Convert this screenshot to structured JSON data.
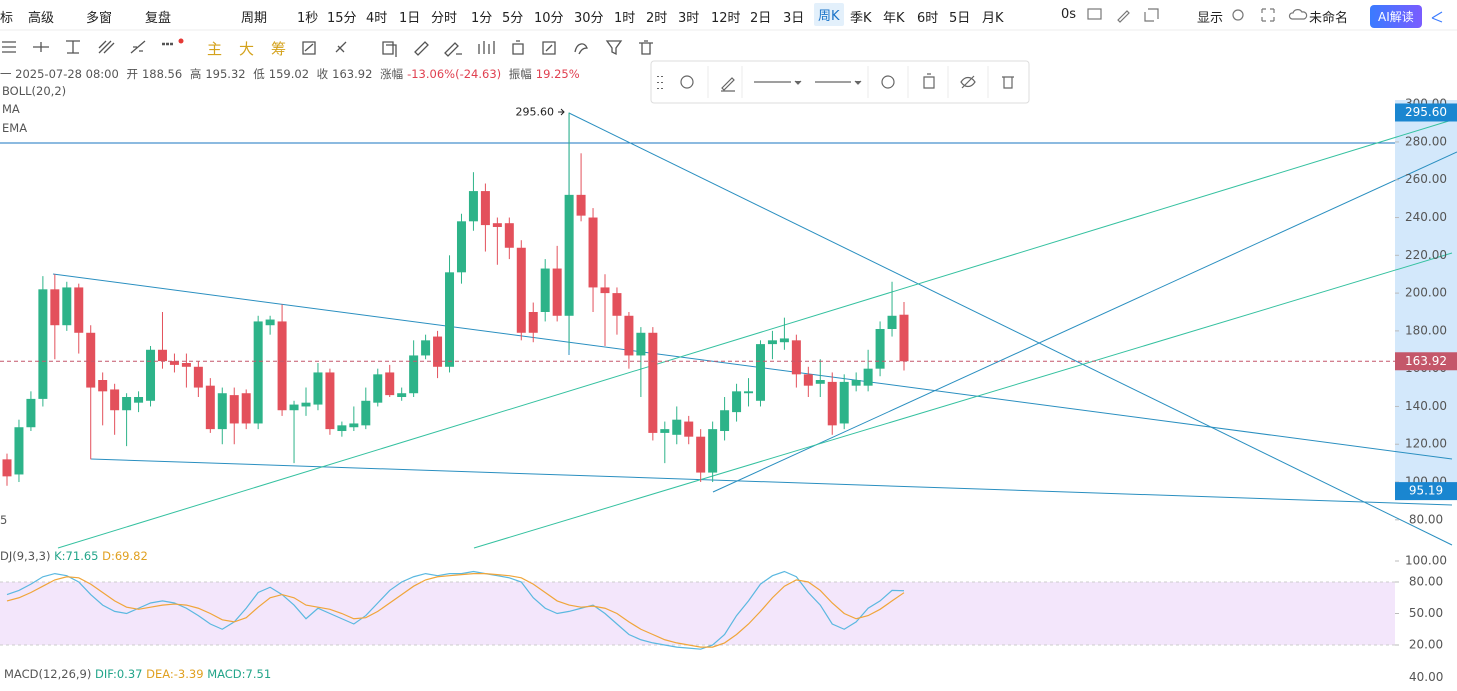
{
  "toolbar": {
    "items": [
      "标",
      "高级",
      "多窗",
      "复盘",
      "周期",
      "1秒",
      "15分",
      "4时",
      "1日",
      "分时",
      "1分",
      "5分",
      "10分",
      "30分",
      "1时",
      "2时",
      "3时",
      "12时",
      "2日",
      "3日",
      "周K",
      "季K",
      "年K",
      "6时",
      "5日",
      "月K"
    ],
    "selected": 20,
    "right_items": [
      "0s",
      "显示",
      "未命名"
    ],
    "ai_button": "AI解读"
  },
  "drawing_toolbar": {
    "items": [
      "主",
      "大",
      "筹"
    ],
    "color": "#d4a21c"
  },
  "info": {
    "date": "一 2025-07-28 08:00",
    "open_label": "开",
    "high_label": "高",
    "low_label": "低",
    "close_label": "收",
    "change_label": "涨幅",
    "change": "-13.06%(-24.63)",
    "amplitude_label": "振幅",
    "amplitude": "19.25%"
  },
  "indicators": [
    "BOLL(20,2)",
    "MA",
    "EMA"
  ],
  "left_edge_label": "5",
  "chart_data": [
    {
      "type": "candlestick",
      "up_color": "#2db389",
      "down_color": "#e3505b",
      "ylim": [
        70,
        302
      ],
      "yticks": [
        {
          "value": 80,
          "label": "80.00"
        },
        {
          "value": 100,
          "label": "100.00"
        },
        {
          "value": 120,
          "label": "120.00"
        },
        {
          "value": 140,
          "label": "140.00"
        },
        {
          "value": 160,
          "label": "160.00"
        },
        {
          "value": 180,
          "label": "180.00"
        },
        {
          "value": 200,
          "label": "200.00"
        },
        {
          "value": 220,
          "label": "220.00"
        },
        {
          "value": 240,
          "label": "240.00"
        },
        {
          "value": 260,
          "label": "260.00"
        },
        {
          "value": 280,
          "label": "280.00"
        },
        {
          "value": 300,
          "label": "300.00"
        }
      ],
      "price_tags": [
        {
          "value": 295.6,
          "label": "295.60",
          "color": "#1a86d0"
        },
        {
          "value": 163.92,
          "label": "163.92",
          "color": "#c4576a",
          "line": "dashed"
        },
        {
          "value": 95.19,
          "label": "95.19",
          "color": "#1a86d0"
        }
      ],
      "candles": [
        {
          "open": 112,
          "high": 115,
          "low": 98,
          "close": 103
        },
        {
          "open": 104,
          "high": 133,
          "low": 100,
          "close": 129
        },
        {
          "open": 129,
          "high": 148,
          "low": 127,
          "close": 144
        },
        {
          "open": 144,
          "high": 209,
          "low": 140,
          "close": 202
        },
        {
          "open": 202,
          "high": 210,
          "low": 165,
          "close": 183
        },
        {
          "open": 183,
          "high": 206,
          "low": 180,
          "close": 203
        },
        {
          "open": 203,
          "high": 205,
          "low": 168,
          "close": 179
        },
        {
          "open": 179,
          "high": 183,
          "low": 112,
          "close": 150
        },
        {
          "open": 154,
          "high": 158,
          "low": 130,
          "close": 148
        },
        {
          "open": 149,
          "high": 152,
          "low": 125,
          "close": 138
        },
        {
          "open": 138,
          "high": 147,
          "low": 119,
          "close": 145
        },
        {
          "open": 142,
          "high": 148,
          "low": 137,
          "close": 145
        },
        {
          "open": 143,
          "high": 172,
          "low": 140,
          "close": 170
        },
        {
          "open": 170,
          "high": 190,
          "low": 160,
          "close": 164
        },
        {
          "open": 164,
          "high": 168,
          "low": 158,
          "close": 162
        },
        {
          "open": 163,
          "high": 168,
          "low": 150,
          "close": 161
        },
        {
          "open": 161,
          "high": 164,
          "low": 145,
          "close": 150
        },
        {
          "open": 151,
          "high": 155,
          "low": 126,
          "close": 128
        },
        {
          "open": 128,
          "high": 150,
          "low": 120,
          "close": 147
        },
        {
          "open": 146,
          "high": 150,
          "low": 120,
          "close": 131
        },
        {
          "open": 147,
          "high": 149,
          "low": 128,
          "close": 131
        },
        {
          "open": 131,
          "high": 188,
          "low": 128,
          "close": 185
        },
        {
          "open": 183,
          "high": 188,
          "low": 178,
          "close": 186
        },
        {
          "open": 185,
          "high": 194,
          "low": 135,
          "close": 138
        },
        {
          "open": 138,
          "high": 143,
          "low": 110,
          "close": 141
        },
        {
          "open": 140,
          "high": 150,
          "low": 135,
          "close": 142
        },
        {
          "open": 141,
          "high": 163,
          "low": 138,
          "close": 158
        },
        {
          "open": 158,
          "high": 160,
          "low": 125,
          "close": 128
        },
        {
          "open": 127,
          "high": 132,
          "low": 124,
          "close": 130
        },
        {
          "open": 129,
          "high": 140,
          "low": 127,
          "close": 131
        },
        {
          "open": 130,
          "high": 150,
          "low": 128,
          "close": 143
        },
        {
          "open": 142,
          "high": 160,
          "low": 140,
          "close": 157
        },
        {
          "open": 158,
          "high": 162,
          "low": 145,
          "close": 146
        },
        {
          "open": 145,
          "high": 150,
          "low": 143,
          "close": 147
        },
        {
          "open": 147,
          "high": 175,
          "low": 145,
          "close": 167
        },
        {
          "open": 167,
          "high": 178,
          "low": 165,
          "close": 175
        },
        {
          "open": 177,
          "high": 180,
          "low": 155,
          "close": 161
        },
        {
          "open": 161,
          "high": 220,
          "low": 158,
          "close": 211
        },
        {
          "open": 211,
          "high": 242,
          "low": 205,
          "close": 238
        },
        {
          "open": 238,
          "high": 264,
          "low": 233,
          "close": 254
        },
        {
          "open": 254,
          "high": 258,
          "low": 222,
          "close": 236
        },
        {
          "open": 237,
          "high": 240,
          "low": 215,
          "close": 235
        },
        {
          "open": 237,
          "high": 240,
          "low": 218,
          "close": 224
        },
        {
          "open": 224,
          "high": 228,
          "low": 175,
          "close": 179
        },
        {
          "open": 190,
          "high": 195,
          "low": 174,
          "close": 179
        },
        {
          "open": 190,
          "high": 218,
          "low": 185,
          "close": 213
        },
        {
          "open": 213,
          "high": 225,
          "low": 185,
          "close": 188
        },
        {
          "open": 188,
          "high": 295.6,
          "low": 170,
          "close": 252
        },
        {
          "open": 252,
          "high": 274,
          "low": 238,
          "close": 241
        },
        {
          "open": 240,
          "high": 245,
          "low": 190,
          "close": 203
        },
        {
          "open": 203,
          "high": 210,
          "low": 172,
          "close": 200
        },
        {
          "open": 200,
          "high": 203,
          "low": 178,
          "close": 188
        },
        {
          "open": 188,
          "high": 190,
          "low": 160,
          "close": 167
        },
        {
          "open": 167,
          "high": 182,
          "low": 145,
          "close": 179
        },
        {
          "open": 179,
          "high": 182,
          "low": 122,
          "close": 126
        },
        {
          "open": 126,
          "high": 132,
          "low": 110,
          "close": 128
        },
        {
          "open": 125,
          "high": 140,
          "low": 120,
          "close": 133
        },
        {
          "open": 132,
          "high": 135,
          "low": 120,
          "close": 124
        },
        {
          "open": 124,
          "high": 128,
          "low": 100,
          "close": 105
        },
        {
          "open": 105,
          "high": 132,
          "low": 100,
          "close": 128
        },
        {
          "open": 127,
          "high": 145,
          "low": 122,
          "close": 138
        },
        {
          "open": 137,
          "high": 152,
          "low": 132,
          "close": 148
        },
        {
          "open": 147,
          "high": 155,
          "low": 140,
          "close": 148
        },
        {
          "open": 143,
          "high": 175,
          "low": 140,
          "close": 173
        },
        {
          "open": 173,
          "high": 180,
          "low": 165,
          "close": 175
        },
        {
          "open": 174,
          "high": 187,
          "low": 170,
          "close": 176
        },
        {
          "open": 175,
          "high": 178,
          "low": 150,
          "close": 157
        },
        {
          "open": 157,
          "high": 161,
          "low": 145,
          "close": 151
        },
        {
          "open": 152,
          "high": 165,
          "low": 145,
          "close": 154
        },
        {
          "open": 153,
          "high": 158,
          "low": 125,
          "close": 130
        },
        {
          "open": 131,
          "high": 157,
          "low": 128,
          "close": 153
        },
        {
          "open": 151,
          "high": 158,
          "low": 148,
          "close": 154
        },
        {
          "open": 151,
          "high": 170,
          "low": 148,
          "close": 160
        },
        {
          "open": 160,
          "high": 185,
          "low": 156,
          "close": 181
        },
        {
          "open": 181,
          "high": 206,
          "low": 177,
          "close": 188
        },
        {
          "open": 188.56,
          "high": 195.32,
          "low": 159.02,
          "close": 163.92
        }
      ]
    },
    {
      "type": "line",
      "title": "DJ(9,3,3)",
      "ylim": [
        10,
        108
      ],
      "yticks": [
        {
          "value": 20,
          "label": "20.00"
        },
        {
          "value": 50,
          "label": "50.00"
        },
        {
          "value": 80,
          "label": "80.00"
        },
        {
          "value": 100,
          "label": "100.00"
        }
      ],
      "band": [
        20,
        80
      ],
      "band_color": "#f3e6fb",
      "series": [
        {
          "name": "K",
          "label": "K:71.65",
          "color": "#5bb8e0",
          "label_color": "#23a58a",
          "values": [
            68,
            72,
            78,
            85,
            88,
            86,
            80,
            68,
            58,
            52,
            50,
            55,
            60,
            62,
            60,
            55,
            48,
            40,
            35,
            42,
            55,
            70,
            75,
            68,
            58,
            45,
            55,
            50,
            45,
            40,
            48,
            60,
            72,
            80,
            85,
            88,
            86,
            88,
            88,
            90,
            88,
            86,
            84,
            80,
            65,
            55,
            50,
            52,
            55,
            58,
            50,
            40,
            30,
            25,
            22,
            20,
            18,
            17,
            16,
            20,
            30,
            48,
            62,
            78,
            86,
            90,
            85,
            70,
            58,
            40,
            35,
            42,
            55,
            62,
            72,
            71.65
          ]
        },
        {
          "name": "D",
          "label": "D:69.82",
          "color": "#f0a53a",
          "label_color": "#e0a020",
          "values": [
            62,
            65,
            70,
            76,
            82,
            85,
            84,
            78,
            70,
            62,
            56,
            54,
            56,
            58,
            59,
            58,
            55,
            50,
            44,
            42,
            46,
            56,
            65,
            68,
            65,
            58,
            56,
            54,
            50,
            45,
            46,
            52,
            60,
            68,
            76,
            82,
            85,
            86,
            87,
            88,
            88,
            87,
            86,
            84,
            78,
            70,
            62,
            58,
            56,
            57,
            55,
            50,
            42,
            35,
            30,
            25,
            22,
            20,
            18,
            18,
            22,
            30,
            40,
            52,
            65,
            76,
            82,
            80,
            72,
            60,
            50,
            45,
            48,
            54,
            62,
            69.82
          ]
        }
      ]
    }
  ],
  "macd": {
    "title": "MACD(12,26,9)",
    "items": [
      {
        "text": "DIF:0.37",
        "color": "#23a58a"
      },
      {
        "text": "DEA:-3.39",
        "color": "#e0a020"
      },
      {
        "text": "MACD:7.51",
        "color": "#23a58a"
      }
    ],
    "axis_label": "40.00"
  }
}
